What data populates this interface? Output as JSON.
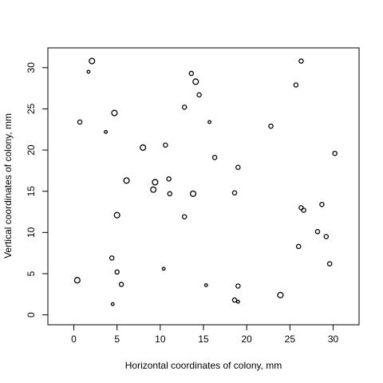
{
  "chart_data": {
    "type": "scatter",
    "title": "",
    "xlabel": "Horizontal coordinates of colony, mm",
    "ylabel": "Vertical coordinates of colony, mm",
    "xlim": [
      -3,
      33
    ],
    "ylim": [
      -1.2,
      32.4
    ],
    "xticks": [
      0,
      5,
      10,
      15,
      20,
      25,
      30
    ],
    "yticks": [
      0,
      5,
      10,
      15,
      20,
      25,
      30
    ],
    "grid": false,
    "points": [
      {
        "x": 2.1,
        "y": 30.8,
        "size": "large"
      },
      {
        "x": 1.7,
        "y": 29.5,
        "size": "small"
      },
      {
        "x": 0.7,
        "y": 23.4,
        "size": "medium"
      },
      {
        "x": 3.7,
        "y": 22.2,
        "size": "small"
      },
      {
        "x": 4.7,
        "y": 24.5,
        "size": "large"
      },
      {
        "x": 8.0,
        "y": 20.3,
        "size": "large"
      },
      {
        "x": 6.1,
        "y": 16.3,
        "size": "large"
      },
      {
        "x": 9.4,
        "y": 16.1,
        "size": "large"
      },
      {
        "x": 9.2,
        "y": 15.2,
        "size": "large"
      },
      {
        "x": 5.0,
        "y": 12.1,
        "size": "large"
      },
      {
        "x": 10.6,
        "y": 20.6,
        "size": "medium"
      },
      {
        "x": 11.0,
        "y": 16.5,
        "size": "medium"
      },
      {
        "x": 11.1,
        "y": 14.7,
        "size": "medium"
      },
      {
        "x": 13.8,
        "y": 14.7,
        "size": "large"
      },
      {
        "x": 12.8,
        "y": 11.9,
        "size": "medium"
      },
      {
        "x": 13.6,
        "y": 29.3,
        "size": "medium"
      },
      {
        "x": 14.1,
        "y": 28.3,
        "size": "large"
      },
      {
        "x": 14.5,
        "y": 26.7,
        "size": "medium"
      },
      {
        "x": 12.8,
        "y": 25.2,
        "size": "medium"
      },
      {
        "x": 15.7,
        "y": 23.4,
        "size": "small"
      },
      {
        "x": 16.3,
        "y": 19.1,
        "size": "medium"
      },
      {
        "x": 19.0,
        "y": 17.9,
        "size": "medium"
      },
      {
        "x": 18.6,
        "y": 14.8,
        "size": "medium"
      },
      {
        "x": 22.8,
        "y": 22.9,
        "size": "medium"
      },
      {
        "x": 25.7,
        "y": 27.9,
        "size": "medium"
      },
      {
        "x": 26.3,
        "y": 30.8,
        "size": "medium"
      },
      {
        "x": 30.2,
        "y": 19.6,
        "size": "medium"
      },
      {
        "x": 28.7,
        "y": 13.4,
        "size": "medium"
      },
      {
        "x": 26.3,
        "y": 13.0,
        "size": "medium"
      },
      {
        "x": 26.6,
        "y": 12.7,
        "size": "medium"
      },
      {
        "x": 28.2,
        "y": 10.1,
        "size": "medium"
      },
      {
        "x": 29.2,
        "y": 9.5,
        "size": "medium"
      },
      {
        "x": 26.0,
        "y": 8.3,
        "size": "medium"
      },
      {
        "x": 29.6,
        "y": 6.2,
        "size": "medium"
      },
      {
        "x": 0.4,
        "y": 4.2,
        "size": "large"
      },
      {
        "x": 4.4,
        "y": 6.9,
        "size": "medium"
      },
      {
        "x": 5.0,
        "y": 5.2,
        "size": "medium"
      },
      {
        "x": 5.5,
        "y": 3.7,
        "size": "medium"
      },
      {
        "x": 4.5,
        "y": 1.3,
        "size": "small"
      },
      {
        "x": 10.4,
        "y": 5.6,
        "size": "small"
      },
      {
        "x": 15.3,
        "y": 3.6,
        "size": "small"
      },
      {
        "x": 19.0,
        "y": 3.5,
        "size": "medium"
      },
      {
        "x": 18.6,
        "y": 1.8,
        "size": "medium"
      },
      {
        "x": 19.0,
        "y": 1.6,
        "size": "small"
      },
      {
        "x": 23.9,
        "y": 2.4,
        "size": "large"
      }
    ]
  }
}
